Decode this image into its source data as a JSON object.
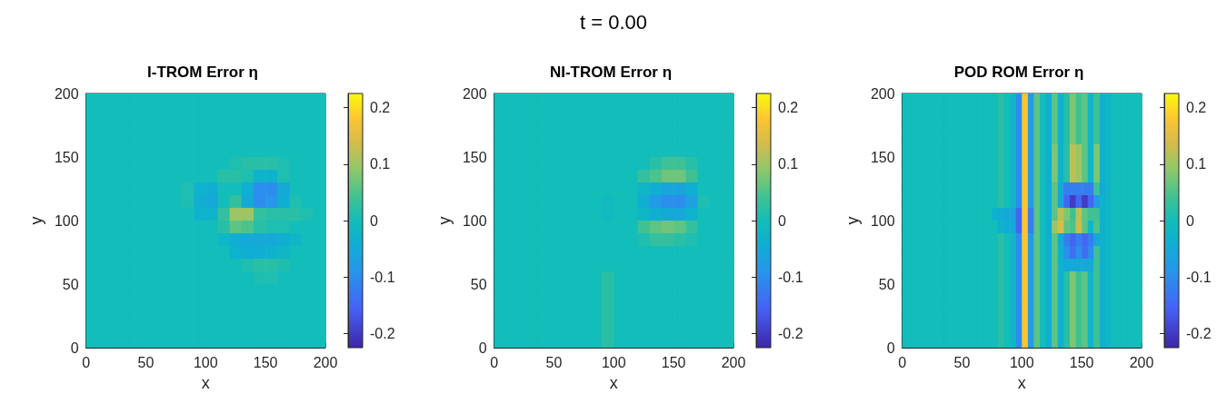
{
  "chart_data": [
    {
      "type": "heatmap",
      "title": "I-TROM Error η",
      "xlabel": "x",
      "ylabel": "y",
      "annotations": [
        "t = 0.00"
      ],
      "cells": [
        [
          0,
          0,
          0,
          0,
          0,
          0,
          0,
          0,
          0,
          0,
          0,
          0,
          0,
          0,
          0,
          0,
          0,
          0,
          0,
          0
        ],
        [
          0,
          0,
          0,
          0,
          0,
          0,
          0,
          0,
          0,
          0,
          0,
          0,
          0,
          0,
          0,
          0,
          0,
          0,
          0,
          0
        ],
        [
          0,
          0,
          0,
          0,
          0,
          0,
          0,
          0,
          0,
          0,
          0,
          0,
          0,
          0,
          0,
          0,
          0,
          0,
          0,
          0
        ],
        [
          0,
          0,
          0,
          0,
          0,
          0,
          0,
          0,
          0,
          0,
          0,
          0,
          0,
          0,
          0,
          0,
          0,
          0,
          0,
          0
        ],
        [
          0,
          0,
          0,
          0,
          0,
          0,
          0,
          0,
          0,
          0,
          0,
          0,
          0,
          0,
          0,
          0,
          0,
          0,
          0,
          0
        ],
        [
          0,
          0,
          0,
          0,
          0,
          0,
          0,
          0,
          0,
          0,
          0,
          0,
          0.01,
          0.02,
          0.02,
          0.02,
          0.01,
          0,
          0,
          0
        ],
        [
          0,
          0,
          0,
          0,
          0,
          0,
          0,
          0,
          0,
          0,
          0,
          0.02,
          0.02,
          0.01,
          -0.03,
          -0.03,
          0.01,
          0,
          0,
          0
        ],
        [
          0,
          0,
          0,
          0,
          0,
          0,
          0,
          0,
          0.01,
          -0.03,
          -0.04,
          0,
          0,
          -0.04,
          -0.1,
          -0.1,
          -0.05,
          0,
          0,
          0
        ],
        [
          0,
          0,
          0,
          0,
          0,
          0,
          0,
          0,
          0.01,
          -0.04,
          -0.05,
          0,
          0.03,
          -0.05,
          -0.1,
          -0.09,
          -0.04,
          0.01,
          0,
          0
        ],
        [
          0,
          0,
          0,
          0,
          0,
          0,
          0,
          0,
          0,
          -0.03,
          -0.03,
          0.03,
          0.1,
          0.1,
          0.03,
          0.02,
          0.02,
          0.02,
          0.01,
          0
        ],
        [
          0,
          0,
          0,
          0,
          0,
          0,
          0,
          0,
          0,
          0,
          0,
          0.02,
          0.06,
          0.05,
          0.02,
          0.01,
          0.01,
          0,
          0,
          0
        ],
        [
          0,
          0,
          0,
          0,
          0,
          0,
          0,
          0,
          0,
          0,
          0,
          -0.02,
          -0.04,
          -0.05,
          -0.05,
          -0.05,
          -0.04,
          -0.02,
          0,
          0
        ],
        [
          0,
          0,
          0,
          0,
          0,
          0,
          0,
          0,
          0,
          0,
          0,
          0,
          -0.03,
          -0.04,
          -0.04,
          -0.03,
          -0.02,
          0,
          0,
          0
        ],
        [
          0,
          0,
          0,
          0,
          0,
          0,
          0,
          0,
          0,
          0,
          0,
          0,
          0,
          0.01,
          0.02,
          0.02,
          0.01,
          0,
          0,
          0
        ],
        [
          0,
          0,
          0,
          0,
          0,
          0,
          0,
          0,
          0,
          0,
          0,
          0,
          0,
          0,
          0.01,
          0.01,
          0,
          0,
          0,
          0
        ],
        [
          0,
          0,
          0,
          0,
          0,
          0,
          0,
          0,
          0,
          0,
          0,
          0,
          0,
          0,
          0,
          0,
          0,
          0,
          0,
          0
        ],
        [
          0,
          0,
          0,
          0,
          0,
          0,
          0,
          0,
          0,
          0,
          0,
          0,
          0,
          0,
          0,
          0,
          0,
          0,
          0,
          0
        ],
        [
          0,
          0,
          0,
          0,
          0,
          0,
          0,
          0,
          0,
          0,
          0,
          0,
          0,
          0,
          0,
          0,
          0,
          0,
          0,
          0
        ],
        [
          0,
          0,
          0,
          0,
          0,
          0,
          0,
          0,
          0,
          0,
          0,
          0,
          0,
          0,
          0,
          0,
          0,
          0,
          0,
          0
        ],
        [
          0,
          0,
          0,
          0,
          0,
          0,
          0,
          0,
          0,
          0,
          0,
          0,
          0,
          0,
          0,
          0,
          0,
          0,
          0,
          0
        ]
      ],
      "xlim": [
        0,
        200
      ],
      "ylim": [
        0,
        200
      ],
      "xticks": [
        0,
        50,
        100,
        150,
        200
      ],
      "yticks": [
        0,
        50,
        100,
        150,
        200
      ],
      "clim": [
        -0.225,
        0.225
      ],
      "cticks": [
        -0.2,
        -0.1,
        0,
        0.1,
        0.2
      ]
    },
    {
      "type": "heatmap",
      "title": "NI-TROM Error η",
      "xlabel": "x",
      "ylabel": "y",
      "cells": [
        [
          0,
          0,
          0,
          0,
          0,
          0,
          0,
          0,
          0,
          0,
          0,
          0,
          0,
          0,
          0,
          0,
          0,
          0,
          0,
          0
        ],
        [
          0,
          0,
          0,
          0,
          0,
          0,
          0,
          0,
          0,
          0,
          0,
          0,
          0,
          0,
          0,
          0,
          0,
          0,
          0,
          0
        ],
        [
          0,
          0,
          0,
          0,
          0,
          0,
          0,
          0,
          0,
          0,
          0,
          0,
          0,
          0,
          0,
          0,
          0,
          0,
          0,
          0
        ],
        [
          0,
          0,
          0,
          0,
          0,
          0,
          0,
          0,
          0,
          0,
          0,
          0,
          0,
          0,
          0,
          0,
          0,
          0,
          0,
          0
        ],
        [
          0,
          0,
          0,
          0,
          0,
          0,
          0,
          0,
          0,
          0,
          0,
          0,
          0,
          0,
          0,
          0,
          0,
          0,
          0,
          0
        ],
        [
          0,
          0,
          0,
          0,
          0,
          0,
          0,
          0,
          0,
          0,
          0,
          0,
          0,
          0.02,
          0.04,
          0.04,
          0.02,
          0,
          0,
          0
        ],
        [
          0,
          0,
          0,
          0,
          0,
          0,
          0,
          0,
          0,
          0,
          0,
          0,
          0.03,
          0.05,
          0.07,
          0.07,
          0.04,
          0,
          0,
          0
        ],
        [
          0,
          0,
          0,
          0,
          0,
          0,
          0,
          0,
          0,
          0,
          0,
          0,
          -0.02,
          -0.04,
          -0.06,
          -0.06,
          -0.04,
          0,
          0,
          0
        ],
        [
          0,
          0,
          0,
          0,
          0,
          0,
          0,
          0,
          0,
          -0.01,
          0,
          0,
          -0.04,
          -0.08,
          -0.1,
          -0.1,
          -0.07,
          0.01,
          0,
          0
        ],
        [
          0,
          0,
          0,
          0,
          0,
          0,
          0,
          0,
          0,
          -0.01,
          0,
          0,
          -0.02,
          -0.04,
          -0.05,
          -0.05,
          -0.03,
          0,
          0,
          0
        ],
        [
          0,
          0,
          0,
          0,
          0,
          0,
          0,
          0,
          0,
          0,
          0,
          0,
          0.04,
          0.06,
          0.07,
          0.06,
          0.03,
          0,
          0,
          0
        ],
        [
          0,
          0,
          0,
          0,
          0,
          0,
          0,
          0,
          0,
          0,
          0,
          0,
          0.01,
          0.03,
          0.03,
          0.02,
          0.01,
          0,
          0,
          0
        ],
        [
          0,
          0,
          0,
          0,
          0,
          0,
          0,
          0,
          0,
          0,
          0,
          0,
          0,
          0,
          0,
          0,
          0,
          0,
          0,
          0
        ],
        [
          0,
          0,
          0,
          0,
          0,
          0,
          0,
          0,
          0,
          0,
          0,
          0,
          0,
          0,
          0,
          0,
          0,
          0,
          0,
          0
        ],
        [
          0,
          0,
          0,
          0,
          0,
          0,
          0,
          0,
          0,
          0.02,
          0,
          0,
          0,
          0,
          0,
          0,
          0,
          0,
          0,
          0
        ],
        [
          0,
          0,
          0,
          0,
          0,
          0,
          0,
          0,
          0,
          0.02,
          0,
          0,
          0,
          0,
          0,
          0,
          0,
          0,
          0,
          0
        ],
        [
          0,
          0,
          0,
          0,
          0,
          0,
          0,
          0,
          0,
          0.02,
          0,
          0,
          0,
          0,
          0,
          0,
          0,
          0,
          0,
          0
        ],
        [
          0,
          0,
          0,
          0,
          0,
          0,
          0,
          0,
          0,
          0.02,
          0,
          0,
          0,
          0,
          0,
          0,
          0,
          0,
          0,
          0
        ],
        [
          0,
          0,
          0,
          0,
          0,
          0,
          0,
          0,
          0,
          0.02,
          0,
          0,
          0,
          0,
          0,
          0,
          0,
          0,
          0,
          0
        ],
        [
          0,
          0,
          0,
          0,
          0,
          0,
          0,
          0,
          0,
          0.02,
          0,
          0,
          0,
          0,
          0,
          0,
          0,
          0,
          0,
          0
        ]
      ],
      "xlim": [
        0,
        200
      ],
      "ylim": [
        0,
        200
      ],
      "xticks": [
        0,
        50,
        100,
        150,
        200
      ],
      "yticks": [
        0,
        50,
        100,
        150,
        200
      ],
      "clim": [
        -0.225,
        0.225
      ],
      "cticks": [
        -0.2,
        -0.1,
        0,
        0.1,
        0.2
      ]
    },
    {
      "type": "heatmap",
      "title": "POD ROM Error η",
      "xlabel": "x",
      "ylabel": "y",
      "cells": [
        [
          0,
          0,
          0,
          0,
          0,
          0,
          0,
          0,
          0,
          0,
          0,
          0,
          0,
          0,
          0,
          0,
          0.02,
          0,
          -0.02,
          -0.1,
          0.18,
          -0.08,
          0.06,
          0,
          -0.04,
          0.06,
          -0.03,
          0.02,
          0.08,
          0.04,
          0.06,
          -0.02,
          0.04,
          -0.03,
          -0.02,
          0,
          0,
          0,
          0,
          0
        ],
        [
          0,
          0,
          0,
          0,
          0,
          0,
          0,
          0,
          0,
          0,
          0,
          0,
          0,
          0,
          0,
          0,
          0.02,
          0,
          -0.02,
          -0.1,
          0.18,
          -0.08,
          0.06,
          0,
          -0.04,
          0.06,
          -0.03,
          0.02,
          0.08,
          0.04,
          0.06,
          -0.02,
          0.04,
          -0.03,
          -0.02,
          0,
          0,
          0,
          0,
          0
        ],
        [
          0,
          0,
          0,
          0,
          0,
          0,
          0,
          0,
          0,
          0,
          0,
          0,
          0,
          0,
          0,
          0,
          0.02,
          0,
          -0.02,
          -0.1,
          0.18,
          -0.08,
          0.06,
          0,
          -0.04,
          0.06,
          -0.03,
          0.02,
          0.08,
          0.04,
          0.06,
          -0.02,
          0.04,
          -0.03,
          -0.02,
          0,
          0,
          0,
          0,
          0
        ],
        [
          0,
          0,
          0,
          0,
          0,
          0,
          0,
          0,
          0,
          0,
          0,
          0,
          0,
          0,
          0,
          0,
          0.02,
          0,
          -0.02,
          -0.1,
          0.18,
          -0.08,
          0.06,
          0,
          -0.04,
          0.06,
          -0.03,
          0.02,
          0.08,
          0.04,
          0.06,
          -0.02,
          0.04,
          -0.03,
          -0.02,
          0,
          0,
          0,
          0,
          0
        ],
        [
          0,
          0,
          0,
          0,
          0,
          0,
          0,
          0,
          0,
          0,
          0,
          0,
          0,
          0,
          0,
          0,
          0.02,
          0,
          -0.02,
          -0.1,
          0.18,
          -0.08,
          0.06,
          0,
          -0.04,
          0.08,
          -0.03,
          0.02,
          0.12,
          0.1,
          0.06,
          -0.02,
          0.08,
          -0.03,
          -0.02,
          0,
          0,
          0,
          0,
          0
        ],
        [
          0,
          0,
          0,
          0,
          0,
          0,
          0,
          0,
          0,
          0,
          0,
          0,
          0,
          0,
          0,
          0,
          0.02,
          0,
          -0.02,
          -0.1,
          0.18,
          -0.08,
          0.06,
          0,
          -0.04,
          0.08,
          -0.03,
          0.02,
          0.12,
          0.1,
          0.06,
          -0.02,
          0.08,
          -0.03,
          -0.02,
          0,
          0,
          0,
          0,
          0
        ],
        [
          0,
          0,
          0,
          0,
          0,
          0,
          0,
          0,
          0,
          0,
          0,
          0,
          0,
          0,
          0,
          0,
          0.02,
          0,
          -0.02,
          -0.1,
          0.18,
          -0.08,
          0.06,
          0,
          -0.04,
          0.08,
          -0.03,
          0.02,
          0.12,
          0.1,
          0.06,
          -0.02,
          0.08,
          -0.03,
          -0.02,
          0,
          0,
          0,
          0,
          0
        ],
        [
          0,
          0,
          0,
          0,
          0,
          0,
          0,
          0,
          0,
          0,
          0,
          0,
          0,
          0,
          0,
          0,
          0.02,
          0,
          -0.02,
          -0.1,
          0.18,
          -0.08,
          0.06,
          0,
          -0.04,
          0.06,
          -0.05,
          -0.12,
          -0.12,
          -0.12,
          -0.12,
          -0.12,
          0.04,
          -0.05,
          -0.02,
          0,
          0,
          0,
          0,
          0
        ],
        [
          0,
          0,
          0,
          0,
          0,
          0,
          0,
          0,
          0,
          0,
          0,
          0,
          0,
          0,
          0,
          0,
          0.02,
          0,
          -0.02,
          -0.1,
          0.18,
          -0.08,
          0.06,
          0,
          -0.04,
          0.06,
          -0.06,
          -0.15,
          -0.2,
          -0.15,
          -0.2,
          -0.15,
          -0.08,
          -0.03,
          -0.02,
          0,
          0,
          0,
          0,
          0
        ],
        [
          0,
          0,
          0,
          0,
          0,
          0,
          0,
          0,
          0,
          0,
          0,
          0,
          0,
          0,
          0,
          -0.03,
          -0.04,
          -0.05,
          -0.06,
          -0.15,
          0.18,
          -0.12,
          0.06,
          0,
          -0.04,
          0.06,
          0.12,
          0.08,
          0.04,
          0.12,
          0.06,
          0.04,
          0.04,
          -0.03,
          -0.02,
          0,
          0,
          0,
          0,
          0
        ],
        [
          0,
          0,
          0,
          0,
          0,
          0,
          0,
          0,
          0,
          0,
          0,
          0,
          0,
          0,
          0,
          0,
          -0.03,
          -0.04,
          -0.05,
          -0.15,
          0.18,
          -0.12,
          0.06,
          0,
          -0.04,
          0.1,
          0.14,
          0.06,
          0.05,
          0.13,
          0.06,
          -0.02,
          0.05,
          -0.03,
          -0.02,
          0,
          0,
          0,
          0,
          0
        ],
        [
          0,
          0,
          0,
          0,
          0,
          0,
          0,
          0,
          0,
          0,
          0,
          0,
          0,
          0,
          0,
          0,
          0.02,
          0,
          -0.02,
          -0.1,
          0.18,
          -0.08,
          0.06,
          0,
          -0.04,
          0.06,
          -0.05,
          -0.12,
          -0.15,
          -0.12,
          -0.15,
          -0.12,
          -0.05,
          -0.03,
          -0.02,
          0,
          0,
          0,
          0,
          0
        ],
        [
          0,
          0,
          0,
          0,
          0,
          0,
          0,
          0,
          0,
          0,
          0,
          0,
          0,
          0,
          0,
          0,
          0.02,
          0,
          -0.02,
          -0.1,
          0.18,
          -0.08,
          0.06,
          0,
          -0.04,
          0.06,
          -0.03,
          -0.1,
          -0.14,
          -0.1,
          -0.14,
          -0.1,
          0.04,
          -0.03,
          -0.02,
          0,
          0,
          0,
          0,
          0
        ],
        [
          0,
          0,
          0,
          0,
          0,
          0,
          0,
          0,
          0,
          0,
          0,
          0,
          0,
          0,
          0,
          0,
          0.02,
          0,
          -0.02,
          -0.1,
          0.18,
          -0.08,
          0.06,
          0,
          -0.04,
          0.06,
          -0.03,
          -0.05,
          -0.05,
          -0.05,
          -0.05,
          -0.05,
          0.04,
          -0.03,
          -0.02,
          0,
          0,
          0,
          0,
          0
        ],
        [
          0,
          0,
          0,
          0,
          0,
          0,
          0,
          0,
          0,
          0,
          0,
          0,
          0,
          0,
          0,
          0,
          0.02,
          0,
          -0.02,
          -0.1,
          0.18,
          -0.08,
          0.06,
          0,
          -0.04,
          0.06,
          -0.03,
          0.02,
          0.08,
          0.04,
          0.06,
          -0.02,
          0.04,
          -0.03,
          -0.02,
          0,
          0,
          0,
          0,
          0
        ],
        [
          0,
          0,
          0,
          0,
          0,
          0,
          0,
          0,
          0,
          0,
          0,
          0,
          0,
          0,
          0,
          0,
          0.02,
          0,
          -0.02,
          -0.1,
          0.18,
          -0.08,
          0.06,
          0,
          -0.04,
          0.06,
          -0.03,
          0.02,
          0.08,
          0.04,
          0.06,
          -0.02,
          0.04,
          -0.03,
          -0.02,
          0,
          0,
          0,
          0,
          0
        ],
        [
          0,
          0,
          0,
          0,
          0,
          0,
          0,
          0,
          0,
          0,
          0,
          0,
          0,
          0,
          0,
          0,
          0.02,
          0,
          -0.02,
          -0.1,
          0.18,
          -0.08,
          0.06,
          0,
          -0.04,
          0.06,
          -0.03,
          0.02,
          0.08,
          0.04,
          0.06,
          -0.02,
          0.04,
          -0.03,
          -0.02,
          0,
          0,
          0,
          0,
          0
        ],
        [
          0,
          0,
          0,
          0,
          0,
          0,
          0,
          0,
          0,
          0,
          0,
          0,
          0,
          0,
          0,
          0,
          0.02,
          0,
          -0.02,
          -0.1,
          0.18,
          -0.08,
          0.06,
          0,
          -0.04,
          0.06,
          -0.03,
          0.02,
          0.08,
          0.04,
          0.06,
          -0.02,
          0.04,
          -0.03,
          -0.02,
          0,
          0,
          0,
          0,
          0
        ],
        [
          0,
          0,
          0,
          0,
          0,
          0,
          0,
          0,
          0,
          0,
          0,
          0,
          0,
          0,
          0,
          0,
          0.02,
          0,
          -0.02,
          -0.1,
          0.18,
          -0.08,
          0.06,
          0,
          -0.04,
          0.06,
          -0.03,
          0.02,
          0.08,
          0.04,
          0.06,
          -0.02,
          0.04,
          -0.03,
          -0.02,
          0,
          0,
          0,
          0,
          0
        ],
        [
          0,
          0,
          0,
          0,
          0,
          0,
          0,
          0,
          0,
          0,
          0,
          0,
          0,
          0,
          0,
          0,
          0.02,
          0,
          -0.02,
          -0.1,
          0.18,
          -0.08,
          0.06,
          0,
          -0.04,
          0.06,
          -0.03,
          0.02,
          0.08,
          0.04,
          0.06,
          -0.02,
          0.04,
          -0.03,
          -0.02,
          0,
          0,
          0,
          0,
          0
        ]
      ],
      "xlim": [
        0,
        200
      ],
      "ylim": [
        0,
        200
      ],
      "xticks": [
        0,
        50,
        100,
        150,
        200
      ],
      "yticks": [
        0,
        50,
        100,
        150,
        200
      ],
      "clim": [
        -0.225,
        0.225
      ],
      "cticks": [
        -0.2,
        -0.1,
        0,
        0.1,
        0.2
      ]
    }
  ]
}
